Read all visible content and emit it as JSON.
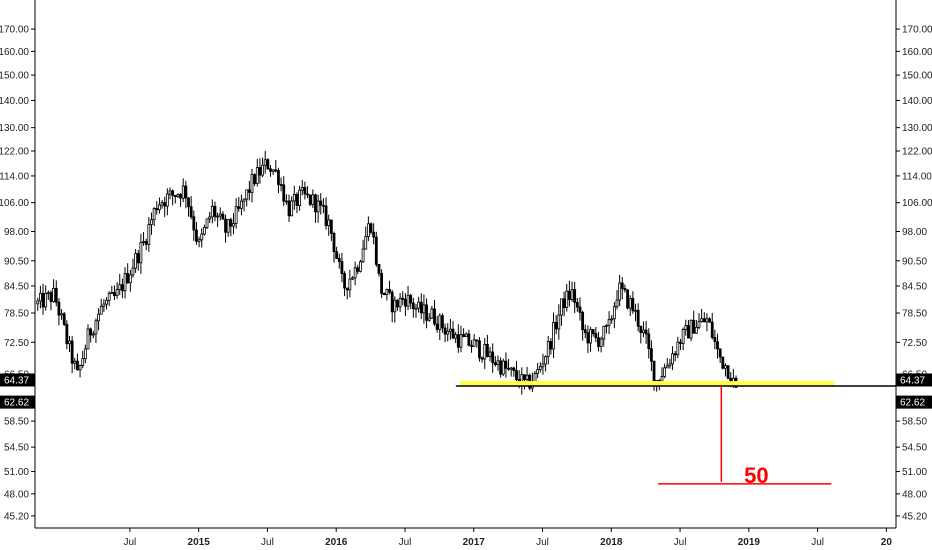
{
  "chart_data": {
    "type": "candlestick",
    "title": "",
    "xlabel": "",
    "ylabel": "",
    "y_axis_ticks": [
      "170.00",
      "160.00",
      "150.00",
      "140.00",
      "130.00",
      "122.00",
      "114.00",
      "106.00",
      "98.00",
      "90.50",
      "84.50",
      "78.50",
      "72.50",
      "66.50",
      "58.50",
      "54.50",
      "51.00",
      "48.00",
      "45.20"
    ],
    "y_axis_tick_values": [
      170,
      160,
      150,
      140,
      130,
      122,
      114,
      106,
      98,
      90.5,
      84.5,
      78.5,
      72.5,
      66.5,
      58.5,
      54.5,
      51,
      48,
      45.2
    ],
    "y_scale": "log",
    "ylim": [
      43.5,
      182
    ],
    "x_axis_ticks": [
      {
        "label": "Jul",
        "t": 2014.5,
        "bold": false
      },
      {
        "label": "2015",
        "t": 2015.0,
        "bold": true
      },
      {
        "label": "Jul",
        "t": 2015.5,
        "bold": false
      },
      {
        "label": "2016",
        "t": 2016.0,
        "bold": true
      },
      {
        "label": "Jul",
        "t": 2016.5,
        "bold": false
      },
      {
        "label": "2017",
        "t": 2017.0,
        "bold": true
      },
      {
        "label": "Jul",
        "t": 2017.5,
        "bold": false
      },
      {
        "label": "2018",
        "t": 2018.0,
        "bold": true
      },
      {
        "label": "Jul",
        "t": 2018.5,
        "bold": false
      },
      {
        "label": "2019",
        "t": 2019.0,
        "bold": true
      },
      {
        "label": "Jul",
        "t": 2019.5,
        "bold": false
      },
      {
        "label": "20",
        "t": 2020.0,
        "bold": true
      }
    ],
    "xlim": [
      2013.81,
      2020.07
    ],
    "price_tags": [
      {
        "label": "64.37",
        "value": 64.37
      },
      {
        "label": "62.62",
        "value": 62.62
      }
    ],
    "price_path": [
      {
        "t": 2013.83,
        "p": 80.5
      },
      {
        "t": 2013.95,
        "p": 82.5
      },
      {
        "t": 2014.05,
        "p": 72
      },
      {
        "t": 2014.12,
        "p": 66
      },
      {
        "t": 2014.2,
        "p": 74
      },
      {
        "t": 2014.3,
        "p": 80
      },
      {
        "t": 2014.4,
        "p": 82
      },
      {
        "t": 2014.5,
        "p": 88
      },
      {
        "t": 2014.6,
        "p": 95
      },
      {
        "t": 2014.7,
        "p": 106
      },
      {
        "t": 2014.8,
        "p": 108
      },
      {
        "t": 2014.9,
        "p": 110
      },
      {
        "t": 2015.0,
        "p": 94
      },
      {
        "t": 2015.1,
        "p": 104
      },
      {
        "t": 2015.2,
        "p": 98
      },
      {
        "t": 2015.3,
        "p": 104
      },
      {
        "t": 2015.4,
        "p": 113
      },
      {
        "t": 2015.5,
        "p": 118
      },
      {
        "t": 2015.58,
        "p": 114
      },
      {
        "t": 2015.65,
        "p": 104
      },
      {
        "t": 2015.75,
        "p": 108
      },
      {
        "t": 2015.85,
        "p": 106
      },
      {
        "t": 2015.95,
        "p": 100
      },
      {
        "t": 2016.05,
        "p": 84
      },
      {
        "t": 2016.15,
        "p": 89
      },
      {
        "t": 2016.25,
        "p": 101
      },
      {
        "t": 2016.32,
        "p": 84
      },
      {
        "t": 2016.42,
        "p": 80
      },
      {
        "t": 2016.5,
        "p": 82
      },
      {
        "t": 2016.6,
        "p": 79
      },
      {
        "t": 2016.7,
        "p": 78
      },
      {
        "t": 2016.8,
        "p": 75
      },
      {
        "t": 2016.9,
        "p": 73
      },
      {
        "t": 2017.0,
        "p": 72
      },
      {
        "t": 2017.1,
        "p": 70
      },
      {
        "t": 2017.2,
        "p": 68
      },
      {
        "t": 2017.3,
        "p": 66
      },
      {
        "t": 2017.38,
        "p": 64.5
      },
      {
        "t": 2017.45,
        "p": 66
      },
      {
        "t": 2017.55,
        "p": 72
      },
      {
        "t": 2017.65,
        "p": 81
      },
      {
        "t": 2017.72,
        "p": 83
      },
      {
        "t": 2017.8,
        "p": 74
      },
      {
        "t": 2017.9,
        "p": 73
      },
      {
        "t": 2017.98,
        "p": 75
      },
      {
        "t": 2018.05,
        "p": 84
      },
      {
        "t": 2018.15,
        "p": 80
      },
      {
        "t": 2018.25,
        "p": 73
      },
      {
        "t": 2018.32,
        "p": 65
      },
      {
        "t": 2018.4,
        "p": 68
      },
      {
        "t": 2018.5,
        "p": 73
      },
      {
        "t": 2018.6,
        "p": 76
      },
      {
        "t": 2018.7,
        "p": 77
      },
      {
        "t": 2018.78,
        "p": 70
      },
      {
        "t": 2018.86,
        "p": 67
      },
      {
        "t": 2018.92,
        "p": 62.6
      }
    ],
    "support_line": {
      "value": 64.37,
      "t_start": 2016.87,
      "t_end": 2020.07,
      "color": "#000000"
    },
    "support_zone": {
      "value": 64.8,
      "t_start": 2016.9,
      "t_end": 2019.62,
      "color": "#ffff44"
    },
    "target_annotation": {
      "label": "50",
      "value": 50,
      "t": 2018.8,
      "line_t_start": 2018.34,
      "line_t_end": 2019.6,
      "color": "#ff0000"
    }
  }
}
